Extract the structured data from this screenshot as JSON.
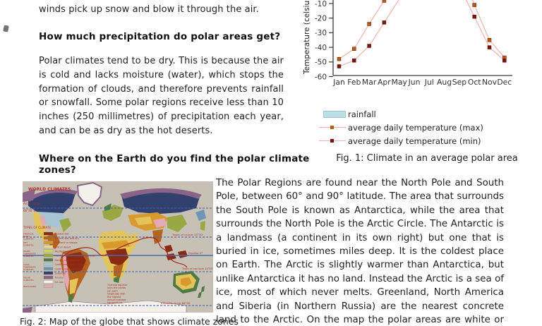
{
  "left_column": {
    "intro_line": "winds pick up snow and blow it through the air.",
    "heading_precipitation": "How much precipitation do polar areas get?",
    "para_precipitation": "Polar climates tend to be dry. This is because the air is cold and lacks moisture (water), which stops the formation of clouds, and therefore prevents rainfall or snowfall. Some polar regions receive less than 10 inches (250 millimetres) of precipitation each year, and can be as dry as the hot deserts.",
    "heading_where": "Where on the Earth do you find the polar climate zones?"
  },
  "right_column": {
    "para_polar_regions": "The Polar Regions are found near the North Pole and South Pole, between 60° and 90° latitude. The area that surrounds the South Pole is known as Antarctica, while the area that surrounds the North Pole is the Arctic Circle. The Antarctic is a landmass (a continent in its own right) but one that is buried in ice, sometimes miles deep. It is the coldest place on Earth. The Arctic is slightly warmer than Antarctica, but unlike Antarctica it has no land. Instead the Arctic is a sea of ice, most of which never melts. Greenland, North America and Siberia (in Northern Russia) are the nearest concrete land to the Arctic. On the map the polar areas are white or purple."
  },
  "chart_data": {
    "type": "line",
    "title": "",
    "xlabel": "",
    "ylabel": "Temperature (celsius)",
    "categories": [
      "Jan",
      "Feb",
      "Mar",
      "Apr",
      "May",
      "Jun",
      "Jul",
      "Aug",
      "Sep",
      "Oct",
      "Nov",
      "Dec"
    ],
    "yticks": [
      -10,
      -20,
      -30,
      -40,
      -50,
      -60
    ],
    "ylim_visible": [
      -60,
      -7
    ],
    "grid": false,
    "legend_position": "below",
    "line_color": "#f0b2aa",
    "axis_color": "#3a3a3a",
    "series": [
      {
        "name": "average daily temperature (max)",
        "marker_color": "#b85c12",
        "values": [
          -48,
          -41,
          -24,
          -8,
          null,
          null,
          null,
          null,
          null,
          -11,
          -35,
          -47
        ]
      },
      {
        "name": "average daily temperature (min)",
        "marker_color": "#7a150c",
        "values": [
          -53,
          -49,
          -39,
          -23,
          null,
          null,
          null,
          null,
          null,
          -19,
          -40,
          -49
        ]
      }
    ],
    "legend": [
      {
        "swatch": "rect",
        "color": "#bcdfe5",
        "label": "rainfall"
      },
      {
        "swatch": "line-square",
        "color": "#b85c12",
        "label": "average daily temperature (max)"
      },
      {
        "swatch": "line-square",
        "color": "#7a150c",
        "label": "average daily temperature (min)"
      }
    ]
  },
  "fig1": {
    "caption": "Fig. 1: Climate in an average polar area"
  },
  "fig2": {
    "caption": "Fig. 2: Map of the globe that shows climate zones"
  },
  "map": {
    "title": "WORLD CLIMATES",
    "legend_header": "TYPES OF CLIMATE",
    "background_color": "#c7c0b4",
    "text_color": "#b03028",
    "latitude_labels": {
      "arctic_line1": "Arctic circle",
      "arctic_line2": "66°30' N",
      "cancer": "Tropic of cancer 23°30'",
      "equator": "Equator 0°",
      "capricorn": "Tropic of capricorn 23°30'",
      "antarctic": "Antarctic circle 66°30'"
    },
    "thermal_equator_note": "Thermal equator joins the points (on each longitude) with the highest annual average temperature",
    "legend_groups": [
      {
        "group": "TROPICAL RAINY CLIMATES",
        "items": [
          {
            "label": "Tropical wet",
            "color": "#8a2a10"
          },
          {
            "label": "Tropical wet and dry",
            "color": "#b4641e"
          }
        ]
      },
      {
        "group": "DRY CLIMATES",
        "items": [
          {
            "label": "Semiarid or steppe",
            "color": "#d89a2e"
          },
          {
            "label": "Arid or desert",
            "color": "#ead796"
          }
        ]
      },
      {
        "group": "WARM TEMPERATE CLIMATES",
        "items": [
          {
            "label": "Mediterranean",
            "color": "#ccd45e"
          },
          {
            "label": "Humid subtropical, warm summer",
            "color": "#9aa844"
          },
          {
            "label": "Marine, cool summer",
            "color": "#4e7a46"
          }
        ]
      },
      {
        "group": "COLD TEMPERATE CLIMATES",
        "items": [
          {
            "label": "Continental, warm summer",
            "color": "#a6c6d6"
          },
          {
            "label": "Continental, cool summer",
            "color": "#6e96b4"
          },
          {
            "label": "Subarctic",
            "color": "#32406e"
          }
        ]
      },
      {
        "group": "POLAR CLIMATES",
        "items": [
          {
            "label": "Tundra",
            "color": "#8a6488"
          },
          {
            "label": "Ice cap",
            "color": "#f4f1ea"
          }
        ]
      },
      {
        "group": "HIGHLANDS",
        "items": [
          {
            "label": "",
            "color": "#e2aab6"
          }
        ]
      }
    ]
  }
}
